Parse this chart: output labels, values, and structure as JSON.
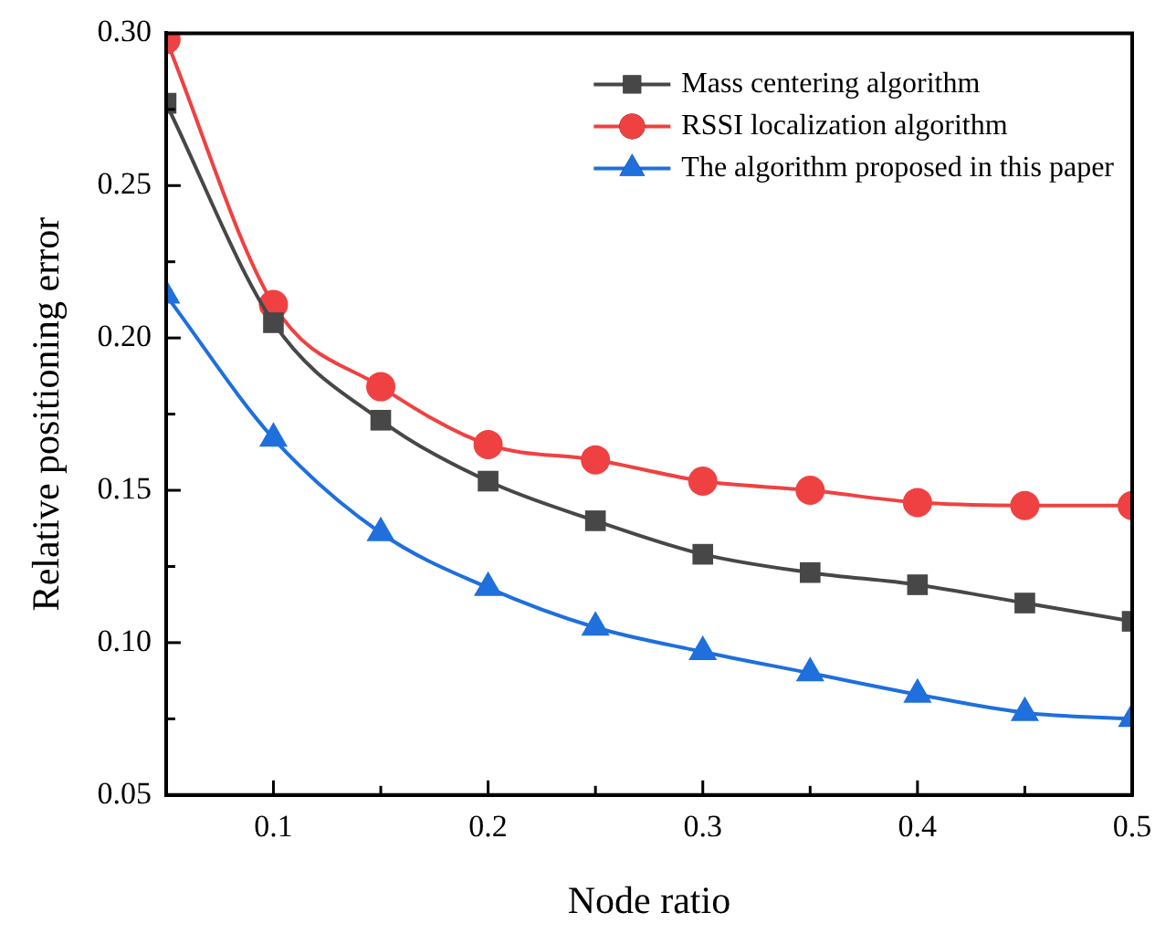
{
  "chart_data": {
    "type": "line",
    "xlabel": "Node ratio",
    "ylabel": "Relative positioning error",
    "x": [
      0.05,
      0.1,
      0.15,
      0.2,
      0.25,
      0.3,
      0.35,
      0.4,
      0.45,
      0.5
    ],
    "series": [
      {
        "name": "Mass centering algorithm",
        "color": "#474747",
        "marker": "square",
        "values": [
          0.277,
          0.205,
          0.173,
          0.153,
          0.14,
          0.129,
          0.123,
          0.119,
          0.113,
          0.107
        ]
      },
      {
        "name": "RSSI localization algorithm",
        "color": "#ef4141",
        "marker": "circle",
        "values": [
          0.298,
          0.211,
          0.184,
          0.165,
          0.16,
          0.153,
          0.15,
          0.146,
          0.145,
          0.145
        ]
      },
      {
        "name": "The algorithm proposed in this paper",
        "color": "#1f6fdc",
        "marker": "triangle",
        "values": [
          0.214,
          0.167,
          0.136,
          0.118,
          0.105,
          0.097,
          0.09,
          0.083,
          0.077,
          0.075
        ]
      }
    ],
    "xlim": [
      0.05,
      0.5
    ],
    "xticks": [
      0.1,
      {
        "value": 0.15,
        "label": null
      },
      0.2,
      {
        "value": 0.25,
        "label": null
      },
      0.3,
      {
        "value": 0.35,
        "label": null
      },
      0.4,
      {
        "value": 0.45,
        "label": null
      },
      0.5
    ],
    "ylim": [
      0.05,
      0.3
    ],
    "yticks": [
      {
        "value": 0.05,
        "label": "0.05"
      },
      {
        "value": 0.075,
        "label": null
      },
      {
        "value": 0.1,
        "label": "0.10"
      },
      {
        "value": 0.125,
        "label": null
      },
      {
        "value": 0.15,
        "label": "0.15"
      },
      {
        "value": 0.175,
        "label": null
      },
      {
        "value": 0.2,
        "label": "0.20"
      },
      {
        "value": 0.225,
        "label": null
      },
      {
        "value": 0.25,
        "label": "0.25"
      },
      {
        "value": 0.275,
        "label": null
      },
      {
        "value": 0.3,
        "label": "0.30"
      }
    ],
    "grid": false,
    "legend": "top right",
    "line_style": "solid"
  }
}
